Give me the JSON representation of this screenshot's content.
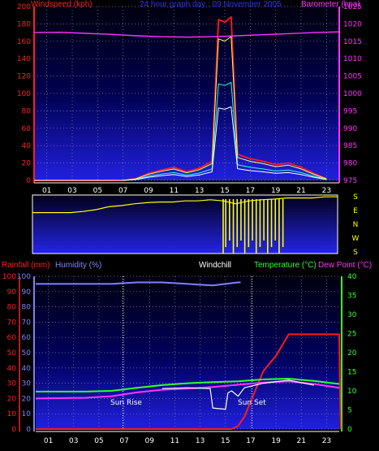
{
  "header": {
    "windspeed": "Windspeed (kph)",
    "title": "24 hour graph day : 09 November 2005",
    "barometer": "Barometer (hpa)"
  },
  "lower_header": {
    "rainfall": "Rainfall (mm)",
    "humidity": "Humidity (%)",
    "windchill": "Windchill",
    "temperature": "Temperature (°C)",
    "dewpoint": "Dew Point (°C)"
  },
  "annotations": {
    "sunrise": "Sun Rise",
    "sunset": "Sun Set"
  },
  "colors": {
    "wind": "#ff1a1a",
    "gust_inner": "#ffff66",
    "white": "#ffffff",
    "cyan": "#33ffcc",
    "baro": "#ff33ff",
    "winddir": "#ffff00",
    "rain": "#ff1a1a",
    "humidity": "#8080ff",
    "temp": "#33ff33",
    "dew": "#ff33ff",
    "windchill": "#ffffff"
  },
  "chart_data": [
    {
      "type": "line",
      "title": "24 hour graph day : 09 November 2005",
      "xlabel": "",
      "ylabel": "Windspeed (kph)",
      "y2label": "Barometer (hpa)",
      "xticks": [
        "01",
        "03",
        "05",
        "07",
        "09",
        "11",
        "13",
        "15",
        "17",
        "19",
        "21",
        "23"
      ],
      "ylim": [
        0,
        200
      ],
      "yticks": [
        0,
        20,
        40,
        60,
        80,
        100,
        120,
        140,
        160,
        180,
        200
      ],
      "y2lim": [
        975,
        1025
      ],
      "y2ticks": [
        975,
        980,
        985,
        990,
        995,
        1000,
        1005,
        1010,
        1015,
        1020,
        1025
      ],
      "series": [
        {
          "name": "Windspeed",
          "x": [
            0,
            7,
            8,
            9,
            10,
            11,
            12,
            13,
            14,
            14.5,
            15,
            15.5,
            16,
            17,
            18,
            19,
            20,
            21,
            22,
            23
          ],
          "values": [
            0,
            0,
            2,
            8,
            12,
            15,
            10,
            14,
            22,
            185,
            182,
            188,
            30,
            25,
            22,
            18,
            20,
            15,
            8,
            2
          ]
        },
        {
          "name": "Barometer",
          "x": [
            0,
            2,
            4,
            6,
            8,
            10,
            12,
            14,
            16,
            18,
            20,
            22,
            24
          ],
          "values": [
            1017.5,
            1017.6,
            1017.3,
            1017,
            1016.6,
            1016.3,
            1016.2,
            1016.3,
            1016.6,
            1016.9,
            1017.2,
            1017.5,
            1017.7
          ]
        }
      ]
    },
    {
      "type": "scatter",
      "title": "",
      "yticks": [
        "S",
        "E",
        "N",
        "W",
        "S"
      ],
      "xticks": [
        "01",
        "03",
        "05",
        "07",
        "09",
        "11",
        "13",
        "15",
        "17",
        "19",
        "21",
        "23"
      ],
      "series": [
        {
          "name": "Wind Direction",
          "x": [
            0,
            3,
            4,
            5,
            6,
            7,
            8,
            9,
            10,
            11,
            12,
            13,
            14,
            15,
            16,
            17,
            18,
            19,
            20,
            21,
            22,
            23,
            24
          ],
          "values": [
            0.7,
            0.7,
            0.72,
            0.75,
            0.8,
            0.82,
            0.85,
            0.87,
            0.88,
            0.88,
            0.9,
            0.9,
            0.92,
            0.9,
            0.85,
            0.9,
            0.92,
            0.93,
            0.95,
            0.95,
            0.95,
            0.97,
            0.97
          ]
        }
      ]
    },
    {
      "type": "line",
      "title": "",
      "ylabel": "Rainfall (mm)",
      "y2label": "Temperature (°C)",
      "xticks": [
        "01",
        "03",
        "05",
        "07",
        "09",
        "11",
        "13",
        "15",
        "17",
        "19",
        "21",
        "23"
      ],
      "ylim": [
        0,
        100
      ],
      "yticks": [
        0,
        10,
        20,
        30,
        40,
        50,
        60,
        70,
        80,
        90,
        100
      ],
      "y2lim": [
        0,
        40
      ],
      "y2ticks": [
        0,
        5,
        10,
        15,
        20,
        25,
        30,
        35,
        40
      ],
      "series": [
        {
          "name": "Rainfall",
          "x": [
            0,
            15.5,
            16,
            16.5,
            17,
            17.5,
            18,
            18.5,
            19,
            19.5,
            20,
            21,
            22,
            23,
            24,
            24.1
          ],
          "values": [
            0,
            0,
            2,
            8,
            18,
            28,
            38,
            43,
            48,
            55,
            62,
            62,
            62,
            62,
            62,
            0
          ]
        },
        {
          "name": "Humidity",
          "x": [
            0,
            6,
            8,
            10,
            12,
            14,
            16,
            16.2
          ],
          "values": [
            95,
            95,
            96,
            96,
            95,
            94,
            96,
            96
          ]
        },
        {
          "name": "Temperature",
          "x": [
            0,
            4,
            6,
            8,
            10,
            12,
            14,
            16,
            18,
            20,
            22,
            24
          ],
          "values": [
            9.8,
            9.8,
            10,
            10.8,
            11.5,
            12,
            12.3,
            12.5,
            13,
            13.2,
            12.6,
            11.8
          ]
        },
        {
          "name": "Dew Point",
          "x": [
            0,
            4,
            6,
            8,
            10,
            12,
            14,
            16,
            18,
            20,
            22,
            24
          ],
          "values": [
            8,
            8.2,
            8.6,
            9.6,
            10.3,
            10.6,
            11,
            11.6,
            12.2,
            12.5,
            11.8,
            10.8
          ]
        },
        {
          "name": "Windchill",
          "x": [
            10,
            12,
            13.8,
            14,
            15,
            15.2,
            15.5,
            16,
            16.5,
            18,
            20,
            22
          ],
          "values": [
            10.6,
            10.8,
            10.6,
            5.5,
            5.2,
            9.5,
            10,
            8.6,
            10.8,
            12,
            12.8,
            11.5
          ]
        }
      ]
    }
  ]
}
